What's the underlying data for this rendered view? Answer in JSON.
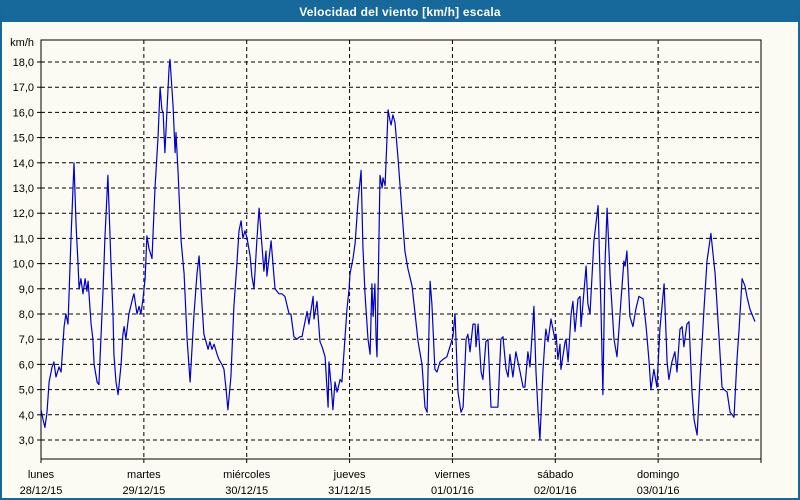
{
  "window": {
    "title": "Velocidad del viento [km/h] escala",
    "title_bar_color": "#17699b",
    "border_color": "#16689a",
    "background_color": "#fbfbf3"
  },
  "chart_data": {
    "type": "line",
    "title": "Velocidad del viento [km/h] escala",
    "ylabel": "km/h",
    "xlabel": "",
    "grid": "dashed-black",
    "legend_position": "none",
    "line_color": "#0000cc",
    "axis_color": "#000000",
    "ylim": [
      2.25,
      18.9
    ],
    "x_total_hours": 168,
    "y_axis": {
      "unit_label": "km/h",
      "tick_values": [
        18,
        17,
        16,
        15,
        14,
        13,
        12,
        11,
        10,
        9,
        8,
        7,
        6,
        5,
        4,
        3
      ],
      "tick_labels": [
        "18,0",
        "17,0",
        "16,0",
        "15,0",
        "14,0",
        "13,0",
        "12,0",
        "11,0",
        "10,0",
        "9,0",
        "8,0",
        "7,0",
        "6,0",
        "5,0",
        "4,0",
        "3,0"
      ]
    },
    "x_axis": {
      "days": [
        {
          "name": "lunes",
          "date": "28/12/15",
          "hour": 0
        },
        {
          "name": "martes",
          "date": "29/12/15",
          "hour": 24
        },
        {
          "name": "miércoles",
          "date": "30/12/15",
          "hour": 48
        },
        {
          "name": "jueves",
          "date": "31/12/15",
          "hour": 72
        },
        {
          "name": "viernes",
          "date": "01/01/16",
          "hour": 96
        },
        {
          "name": "sábado",
          "date": "02/01/16",
          "hour": 120
        },
        {
          "name": "domingo",
          "date": "03/01/16",
          "hour": 144
        }
      ]
    },
    "series": [
      {
        "name": "velocidad del viento",
        "unit": "km/h",
        "x_unit": "hours_from_start",
        "points": [
          [
            0,
            4.2
          ],
          [
            0.5,
            3.8
          ],
          [
            0.9,
            3.5
          ],
          [
            1.4,
            4.1
          ],
          [
            1.9,
            5.3
          ],
          [
            2.6,
            5.9
          ],
          [
            3,
            6.1
          ],
          [
            3.5,
            5.5
          ],
          [
            4.2,
            5.9
          ],
          [
            4.7,
            5.7
          ],
          [
            5.4,
            7.5
          ],
          [
            5.8,
            8
          ],
          [
            6.3,
            7.6
          ],
          [
            7,
            11
          ],
          [
            7.7,
            14
          ],
          [
            8.2,
            11.5
          ],
          [
            8.6,
            10.1
          ],
          [
            8.9,
            9
          ],
          [
            9.3,
            9.4
          ],
          [
            9.8,
            8.8
          ],
          [
            10.3,
            9.4
          ],
          [
            10.7,
            8.9
          ],
          [
            11,
            9.3
          ],
          [
            11.7,
            7.6
          ],
          [
            12.1,
            7
          ],
          [
            12.4,
            6
          ],
          [
            13.1,
            5.3
          ],
          [
            13.5,
            5.2
          ],
          [
            14.5,
            9
          ],
          [
            14.9,
            11
          ],
          [
            15.6,
            13.5
          ],
          [
            16.3,
            10.1
          ],
          [
            16.8,
            8
          ],
          [
            17,
            6.4
          ],
          [
            17.5,
            5.3
          ],
          [
            18,
            4.8
          ],
          [
            18.7,
            6
          ],
          [
            19.1,
            7.2
          ],
          [
            19.4,
            7.5
          ],
          [
            19.8,
            7
          ],
          [
            20.5,
            8
          ],
          [
            21.5,
            8.7
          ],
          [
            21.7,
            8.8
          ],
          [
            22.4,
            8
          ],
          [
            22.9,
            8.3
          ],
          [
            23.3,
            8
          ],
          [
            23.8,
            8.6
          ],
          [
            24.3,
            9.4
          ],
          [
            24.7,
            11.1
          ],
          [
            25.2,
            10.6
          ],
          [
            25.9,
            10.2
          ],
          [
            26.6,
            13
          ],
          [
            27.3,
            15
          ],
          [
            27.8,
            17
          ],
          [
            28.2,
            16.1
          ],
          [
            28.5,
            16
          ],
          [
            28.9,
            14.4
          ],
          [
            29.9,
            17.8
          ],
          [
            30.1,
            18.1
          ],
          [
            30.8,
            16.3
          ],
          [
            31.3,
            14.4
          ],
          [
            31.5,
            15.2
          ],
          [
            32,
            13.6
          ],
          [
            32.7,
            10.9
          ],
          [
            33.4,
            9.6
          ],
          [
            34.1,
            7
          ],
          [
            34.8,
            5.3
          ],
          [
            35.7,
            8
          ],
          [
            36.4,
            9.6
          ],
          [
            36.9,
            10.3
          ],
          [
            37.6,
            8.3
          ],
          [
            38,
            7.2
          ],
          [
            38.5,
            6.9
          ],
          [
            39,
            6.6
          ],
          [
            39.4,
            6.9
          ],
          [
            39.9,
            6.6
          ],
          [
            40.4,
            6.8
          ],
          [
            41.1,
            6.4
          ],
          [
            41.5,
            6.2
          ],
          [
            42.2,
            6
          ],
          [
            42.7,
            5.8
          ],
          [
            43.2,
            5
          ],
          [
            43.6,
            4.2
          ],
          [
            44.3,
            5.5
          ],
          [
            45,
            8.3
          ],
          [
            45.7,
            10
          ],
          [
            46.2,
            11.3
          ],
          [
            46.7,
            11.7
          ],
          [
            47.1,
            11
          ],
          [
            47.6,
            11.3
          ],
          [
            48.1,
            11
          ],
          [
            48.8,
            10.3
          ],
          [
            49.2,
            9.5
          ],
          [
            49.7,
            9
          ],
          [
            50.4,
            11
          ],
          [
            50.9,
            12.2
          ],
          [
            52,
            9.7
          ],
          [
            52.5,
            10.5
          ],
          [
            52.7,
            9.5
          ],
          [
            53.7,
            10.9
          ],
          [
            54.6,
            9
          ],
          [
            55.5,
            8.8
          ],
          [
            56.2,
            8.8
          ],
          [
            56.9,
            8.7
          ],
          [
            57.9,
            8
          ],
          [
            58.3,
            8
          ],
          [
            59,
            7.1
          ],
          [
            59.7,
            7
          ],
          [
            60.4,
            7.1
          ],
          [
            60.9,
            7.1
          ],
          [
            61.6,
            7.7
          ],
          [
            62.1,
            8.1
          ],
          [
            62.5,
            7.6
          ],
          [
            63.5,
            8.7
          ],
          [
            63.7,
            7.8
          ],
          [
            64.4,
            8.5
          ],
          [
            65.1,
            6.9
          ],
          [
            65.6,
            6.7
          ],
          [
            66.3,
            6.3
          ],
          [
            66.7,
            5.1
          ],
          [
            67,
            4.3
          ],
          [
            67.2,
            6.1
          ],
          [
            67.7,
            5.2
          ],
          [
            68.1,
            4.2
          ],
          [
            68.6,
            5.3
          ],
          [
            69.1,
            4.9
          ],
          [
            69.8,
            5.4
          ],
          [
            70.2,
            5.3
          ],
          [
            70.9,
            7
          ],
          [
            71.4,
            8.2
          ],
          [
            71.9,
            9
          ],
          [
            72.1,
            9.6
          ],
          [
            72.8,
            10.2
          ],
          [
            73.3,
            10.8
          ],
          [
            74,
            12.5
          ],
          [
            74.7,
            13.7
          ],
          [
            75.1,
            10.7
          ],
          [
            75.6,
            8.8
          ],
          [
            76.3,
            7
          ],
          [
            76.8,
            6.4
          ],
          [
            77.2,
            9.2
          ],
          [
            77.5,
            7.9
          ],
          [
            77.9,
            9.2
          ],
          [
            78.2,
            7
          ],
          [
            78.4,
            6.3
          ],
          [
            79.1,
            13.5
          ],
          [
            79.6,
            13
          ],
          [
            79.8,
            13.4
          ],
          [
            80.3,
            13.1
          ],
          [
            81,
            16.1
          ],
          [
            81.4,
            15.7
          ],
          [
            81.7,
            15.5
          ],
          [
            82.1,
            15.9
          ],
          [
            82.6,
            15.6
          ],
          [
            83.3,
            14.2
          ],
          [
            84.2,
            12.1
          ],
          [
            84.9,
            10.5
          ],
          [
            85.6,
            9.8
          ],
          [
            86.6,
            9.1
          ],
          [
            87.3,
            8
          ],
          [
            88,
            6.9
          ],
          [
            88.9,
            6
          ],
          [
            89.6,
            4.3
          ],
          [
            90.1,
            4.1
          ],
          [
            90.8,
            9.3
          ],
          [
            91.2,
            8.4
          ],
          [
            91.9,
            5.8
          ],
          [
            92.4,
            5.7
          ],
          [
            93.1,
            6.1
          ],
          [
            93.8,
            6.2
          ],
          [
            94.7,
            6.3
          ],
          [
            95.4,
            6.7
          ],
          [
            96.1,
            7.1
          ],
          [
            96.6,
            8
          ],
          [
            97.3,
            4.9
          ],
          [
            98,
            4.1
          ],
          [
            98.5,
            4.3
          ],
          [
            99.2,
            7
          ],
          [
            99.6,
            7.2
          ],
          [
            100.1,
            6.5
          ],
          [
            100.8,
            7.6
          ],
          [
            101.3,
            7.6
          ],
          [
            101.5,
            6.7
          ],
          [
            102,
            7.6
          ],
          [
            102.7,
            5.7
          ],
          [
            103.1,
            5.4
          ],
          [
            103.8,
            6.9
          ],
          [
            104.3,
            7
          ],
          [
            105,
            4.3
          ],
          [
            105.7,
            4.3
          ],
          [
            106.6,
            4.3
          ],
          [
            107.3,
            7
          ],
          [
            107.8,
            7.1
          ],
          [
            108.5,
            5.8
          ],
          [
            109,
            5.5
          ],
          [
            109.4,
            6.4
          ],
          [
            110.1,
            5.5
          ],
          [
            110.8,
            6.5
          ],
          [
            111.8,
            5.7
          ],
          [
            112.5,
            5.1
          ],
          [
            112.9,
            5.1
          ],
          [
            113.6,
            6.5
          ],
          [
            114.1,
            5.9
          ],
          [
            115,
            8.3
          ],
          [
            115.5,
            5.7
          ],
          [
            116,
            4.1
          ],
          [
            116.4,
            3
          ],
          [
            117.1,
            5.7
          ],
          [
            117.6,
            7
          ],
          [
            117.8,
            7.4
          ],
          [
            118.3,
            6.9
          ],
          [
            119,
            7.8
          ],
          [
            119.9,
            7
          ],
          [
            120.2,
            7.2
          ],
          [
            120.6,
            6.2
          ],
          [
            121.1,
            6.8
          ],
          [
            121.3,
            5.8
          ],
          [
            122.3,
            6.9
          ],
          [
            122.5,
            7
          ],
          [
            123,
            6.1
          ],
          [
            123.7,
            8
          ],
          [
            124.1,
            8.5
          ],
          [
            124.6,
            7.3
          ],
          [
            125.3,
            8.6
          ],
          [
            125.8,
            8.7
          ],
          [
            126,
            7.5
          ],
          [
            127.2,
            9.9
          ],
          [
            127.6,
            8.4
          ],
          [
            128.1,
            8
          ],
          [
            129,
            10.9
          ],
          [
            130,
            12.3
          ],
          [
            130.7,
            8
          ],
          [
            131.1,
            4.8
          ],
          [
            131.6,
            10
          ],
          [
            132.1,
            12.2
          ],
          [
            132.8,
            9.5
          ],
          [
            133.7,
            7
          ],
          [
            134.4,
            6.3
          ],
          [
            135.3,
            8.5
          ],
          [
            136,
            10.1
          ],
          [
            136.3,
            9.9
          ],
          [
            136.7,
            10.5
          ],
          [
            137.4,
            7.9
          ],
          [
            138.1,
            7.5
          ],
          [
            138.8,
            8.2
          ],
          [
            139.5,
            8.7
          ],
          [
            140.5,
            8.6
          ],
          [
            141.2,
            7.5
          ],
          [
            141.9,
            6.1
          ],
          [
            142.3,
            5
          ],
          [
            143,
            5.8
          ],
          [
            143.7,
            5.1
          ],
          [
            144.4,
            7.4
          ],
          [
            145.4,
            9.2
          ],
          [
            146.1,
            6.1
          ],
          [
            146.5,
            5.4
          ],
          [
            147.2,
            6.1
          ],
          [
            147.9,
            6.5
          ],
          [
            148.4,
            5.7
          ],
          [
            149.1,
            7.4
          ],
          [
            149.6,
            7.5
          ],
          [
            150,
            6.7
          ],
          [
            150.7,
            7.6
          ],
          [
            151.2,
            7.7
          ],
          [
            151.9,
            4.9
          ],
          [
            152.4,
            3.8
          ],
          [
            153.1,
            3.2
          ],
          [
            153.8,
            5.5
          ],
          [
            154.7,
            8.2
          ],
          [
            155.4,
            10.1
          ],
          [
            156.3,
            11.2
          ],
          [
            157.3,
            9.6
          ],
          [
            158.2,
            7.1
          ],
          [
            158.9,
            5.1
          ],
          [
            159.4,
            5
          ],
          [
            160.1,
            4.9
          ],
          [
            160.8,
            4.1
          ],
          [
            161.3,
            4
          ],
          [
            161.7,
            3.9
          ],
          [
            162.4,
            6.2
          ],
          [
            162.9,
            7.4
          ],
          [
            163.6,
            9.4
          ],
          [
            164.3,
            9.1
          ],
          [
            164.7,
            8.7
          ],
          [
            165.4,
            8.2
          ],
          [
            166.1,
            7.9
          ],
          [
            166.6,
            7.7
          ]
        ]
      }
    ]
  }
}
